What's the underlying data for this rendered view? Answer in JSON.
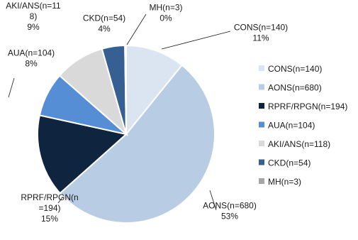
{
  "chart_data": {
    "type": "pie",
    "title": "",
    "legend_position": "right",
    "slices": [
      {
        "name": "CONS(n=140)",
        "value": 140,
        "percent_label": "11%",
        "color": "#dbe5f1"
      },
      {
        "name": "AONS(n=680)",
        "value": 680,
        "percent_label": "53%",
        "color": "#b8cce4"
      },
      {
        "name": "RPRF/RPGN(n=194)",
        "value": 194,
        "percent_label": "15%",
        "color": "#0f243e"
      },
      {
        "name": "AUA(n=104)",
        "value": 104,
        "percent_label": "8%",
        "color": "#558ed5"
      },
      {
        "name": "AKI/ANS(n=118)",
        "value": 118,
        "percent_label": "9%",
        "color": "#d9d9d9"
      },
      {
        "name": "CKD(n=54)",
        "value": 54,
        "percent_label": "4%",
        "color": "#376092"
      },
      {
        "name": "MH(n=3)",
        "value": 3,
        "percent_label": "0%",
        "color": "#a6a6a6"
      }
    ],
    "data_labels": [
      {
        "lines": [
          "CONS(n=140)",
          "11%"
        ]
      },
      {
        "lines": [
          "AONS(n=680)",
          "53%"
        ]
      },
      {
        "lines": [
          "RPRF/RPGN(n",
          "=194)",
          "15%"
        ]
      },
      {
        "lines": [
          "AUA(n=104)",
          "8%"
        ]
      },
      {
        "lines": [
          "AKI/ANS(n=11",
          "8)",
          "9%"
        ]
      },
      {
        "lines": [
          "CKD(n=54)",
          "4%"
        ]
      },
      {
        "lines": [
          "MH(n=3)",
          "0%"
        ]
      }
    ]
  }
}
